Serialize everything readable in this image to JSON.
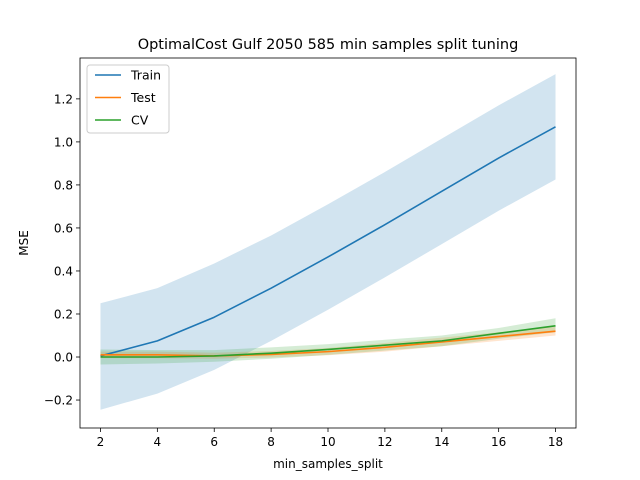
{
  "chart_data": {
    "type": "line",
    "title": "OptimalCost Gulf 2050 585 min samples split tuning",
    "xlabel": "min_samples_split",
    "ylabel": "MSE",
    "x": [
      2,
      4,
      6,
      8,
      10,
      12,
      14,
      16,
      18
    ],
    "xlim": [
      1.28,
      18.72
    ],
    "ylim": [
      -0.33,
      1.39
    ],
    "xticks": [
      2,
      4,
      6,
      8,
      10,
      12,
      14,
      16,
      18
    ],
    "yticks": [
      -0.2,
      0.0,
      0.2,
      0.4,
      0.6,
      0.8,
      1.0,
      1.2
    ],
    "ytick_labels": [
      "−0.2",
      "0.0",
      "0.2",
      "0.4",
      "0.6",
      "0.8",
      "1.0",
      "1.2"
    ],
    "grid": false,
    "legend_position": "top-left",
    "series": [
      {
        "name": "Train",
        "color": "#1f77b4",
        "values": [
          0.005,
          0.075,
          0.185,
          0.32,
          0.465,
          0.615,
          0.77,
          0.925,
          1.07
        ],
        "band_lower": [
          -0.245,
          -0.17,
          -0.06,
          0.075,
          0.22,
          0.37,
          0.525,
          0.68,
          0.825
        ],
        "band_upper": [
          0.25,
          0.32,
          0.435,
          0.565,
          0.71,
          0.86,
          1.015,
          1.17,
          1.315
        ]
      },
      {
        "name": "Test",
        "color": "#ff7f0e",
        "values": [
          0.01,
          0.01,
          0.005,
          0.012,
          0.025,
          0.045,
          0.07,
          0.095,
          0.12
        ],
        "band_lower": [
          -0.005,
          -0.005,
          -0.008,
          -0.002,
          0.008,
          0.025,
          0.05,
          0.075,
          0.1
        ],
        "band_upper": [
          0.025,
          0.025,
          0.02,
          0.028,
          0.042,
          0.065,
          0.09,
          0.115,
          0.14
        ]
      },
      {
        "name": "CV",
        "color": "#2ca02c",
        "values": [
          0.0,
          0.0,
          0.005,
          0.018,
          0.035,
          0.055,
          0.075,
          0.11,
          0.145
        ],
        "band_lower": [
          -0.035,
          -0.03,
          -0.022,
          -0.008,
          0.01,
          0.03,
          0.05,
          0.085,
          0.115
        ],
        "band_upper": [
          0.035,
          0.032,
          0.032,
          0.045,
          0.06,
          0.08,
          0.1,
          0.135,
          0.18
        ]
      }
    ]
  }
}
